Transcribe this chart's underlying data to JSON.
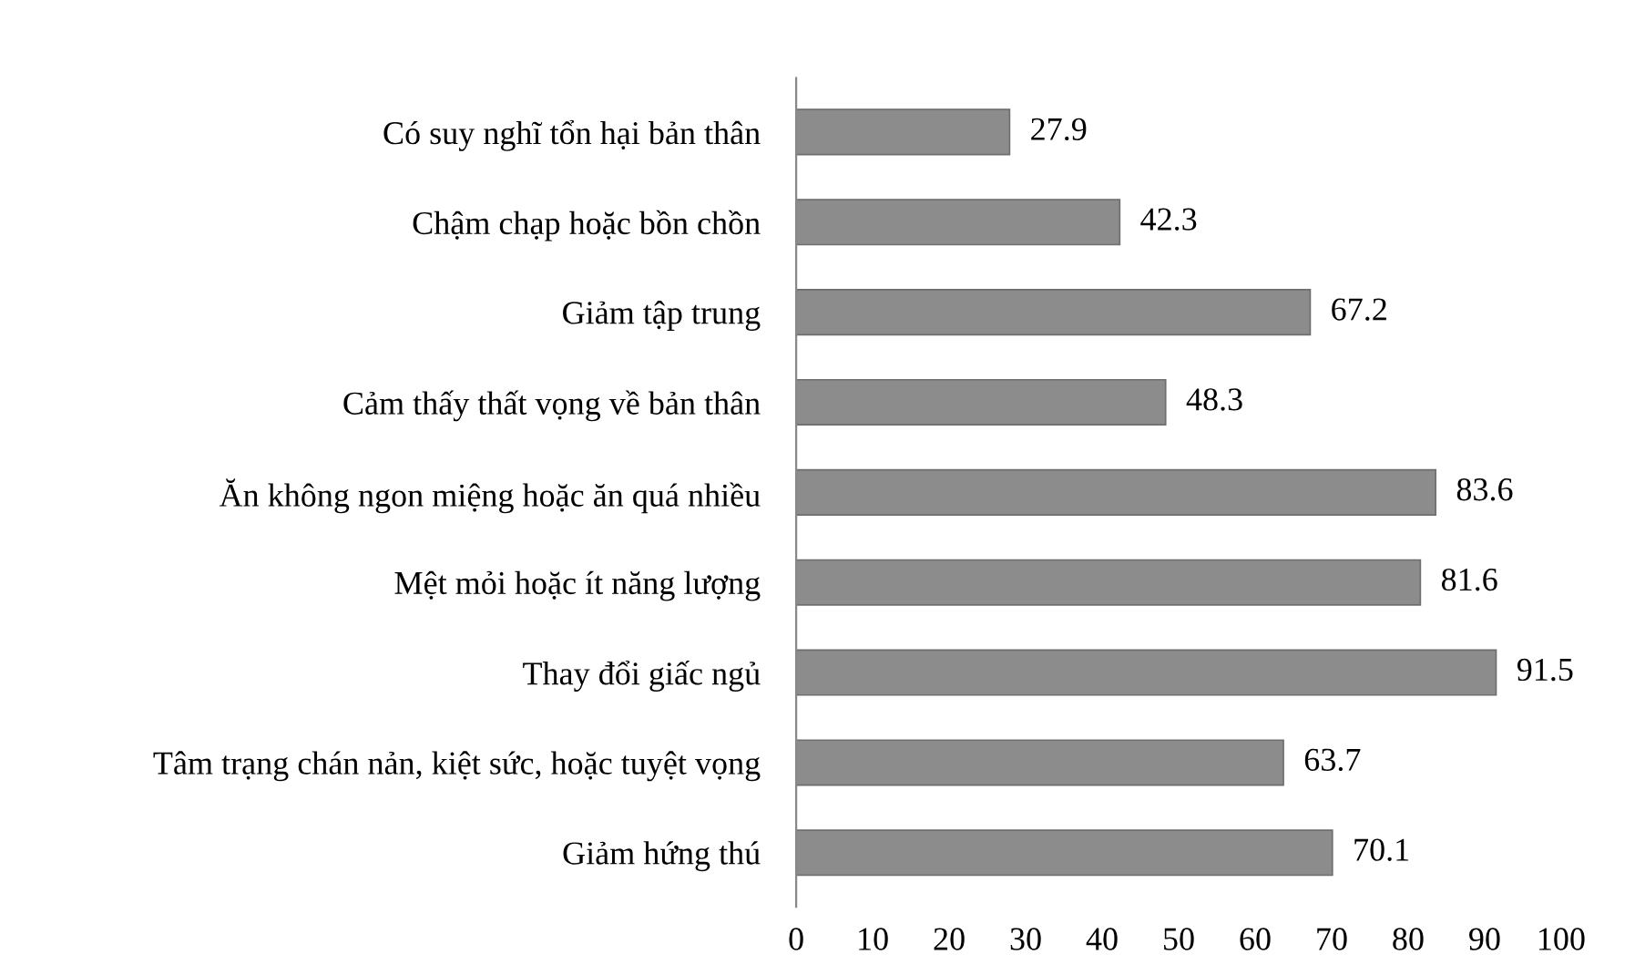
{
  "chart_data": {
    "type": "bar",
    "orientation": "horizontal",
    "categories": [
      "Có suy nghĩ tổn hại bản thân",
      "Chậm chạp hoặc bồn chồn",
      "Giảm tập trung",
      "Cảm thấy thất vọng về bản thân",
      "Ăn không ngon miệng hoặc ăn quá nhiều",
      "Mệt mỏi hoặc ít năng lượng",
      "Thay đổi giấc ngủ",
      "Tâm trạng chán nản, kiệt sức, hoặc tuyệt vọng",
      "Giảm hứng thú"
    ],
    "values": [
      27.9,
      42.3,
      67.2,
      48.3,
      83.6,
      81.6,
      91.5,
      63.7,
      70.1
    ],
    "color": "#8c8c8c",
    "xlim": [
      0,
      100
    ],
    "xticks": [
      0,
      10,
      20,
      30,
      40,
      50,
      60,
      70,
      80,
      90,
      100
    ],
    "data_labels": true,
    "grid": false,
    "legend": false
  }
}
